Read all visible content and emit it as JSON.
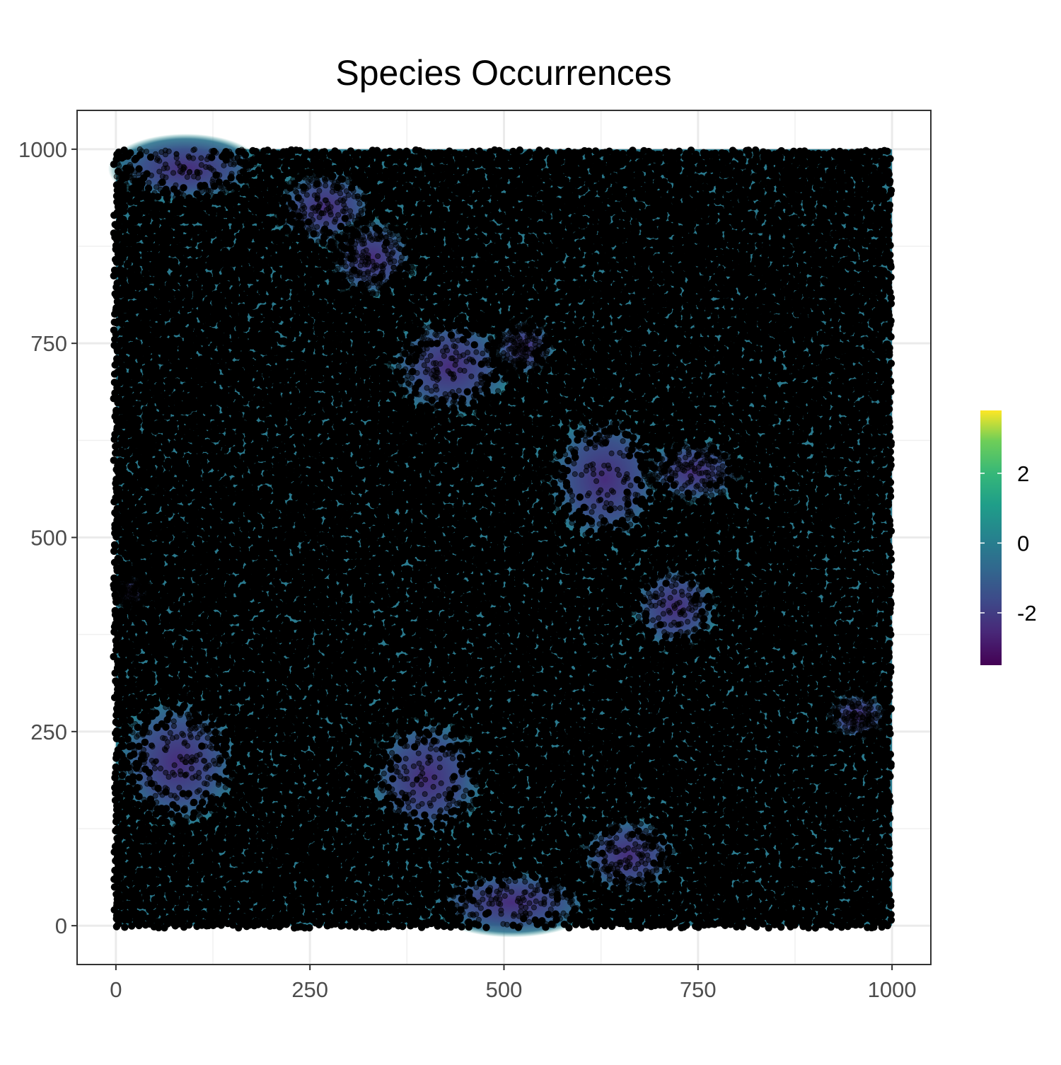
{
  "chart_data": {
    "type": "scatter",
    "title": "Species Occurrences",
    "subtitle": "",
    "xlabel": "",
    "ylabel": "",
    "xlim": [
      -50,
      1050
    ],
    "ylim": [
      -50,
      1050
    ],
    "xticks": [
      0,
      250,
      500,
      750,
      1000
    ],
    "yticks": [
      0,
      250,
      500,
      750,
      1000
    ],
    "xtick_labels": [
      "0",
      "250",
      "500",
      "750",
      "1000"
    ],
    "ytick_labels": [
      "0",
      "250",
      "500",
      "750",
      "1000"
    ],
    "grid": true,
    "background_raster": {
      "extent_x": [
        0,
        1000
      ],
      "extent_y": [
        0,
        1000
      ],
      "colormap": "viridis",
      "value_range": [
        -3.5,
        3.8
      ],
      "regions": [
        {
          "cx": 90,
          "cy": 975,
          "rx": 100,
          "ry": 45,
          "value": -2.6
        },
        {
          "cx": 270,
          "cy": 925,
          "rx": 70,
          "ry": 55,
          "value": -2.3
        },
        {
          "cx": 330,
          "cy": 860,
          "rx": 60,
          "ry": 55,
          "value": -2.2
        },
        {
          "cx": 430,
          "cy": 720,
          "rx": 85,
          "ry": 70,
          "value": -2.7
        },
        {
          "cx": 525,
          "cy": 745,
          "rx": 45,
          "ry": 40,
          "value": -2.5
        },
        {
          "cx": 630,
          "cy": 575,
          "rx": 80,
          "ry": 90,
          "value": -2.3
        },
        {
          "cx": 745,
          "cy": 585,
          "rx": 70,
          "ry": 45,
          "value": -2.2
        },
        {
          "cx": 720,
          "cy": 410,
          "rx": 60,
          "ry": 60,
          "value": -2.0
        },
        {
          "cx": 80,
          "cy": 210,
          "rx": 85,
          "ry": 90,
          "value": -2.3
        },
        {
          "cx": 400,
          "cy": 190,
          "rx": 80,
          "ry": 85,
          "value": -2.6
        },
        {
          "cx": 510,
          "cy": 30,
          "rx": 110,
          "ry": 45,
          "value": -2.5
        },
        {
          "cx": 660,
          "cy": 90,
          "rx": 70,
          "ry": 55,
          "value": -2.0
        },
        {
          "cx": 955,
          "cy": 270,
          "rx": 45,
          "ry": 35,
          "value": -1.8
        },
        {
          "cx": 20,
          "cy": 430,
          "rx": 25,
          "ry": 25,
          "value": -1.5
        }
      ]
    },
    "points": {
      "n_approx": 60000,
      "color": "#000000",
      "alpha": 0.5,
      "occupied_extent": [
        0,
        1000,
        0,
        1000
      ]
    },
    "colorbar": {
      "tick_values": [
        2,
        0,
        -2
      ],
      "tick_labels": [
        "2",
        "0",
        "-2"
      ],
      "placement": "right"
    }
  }
}
